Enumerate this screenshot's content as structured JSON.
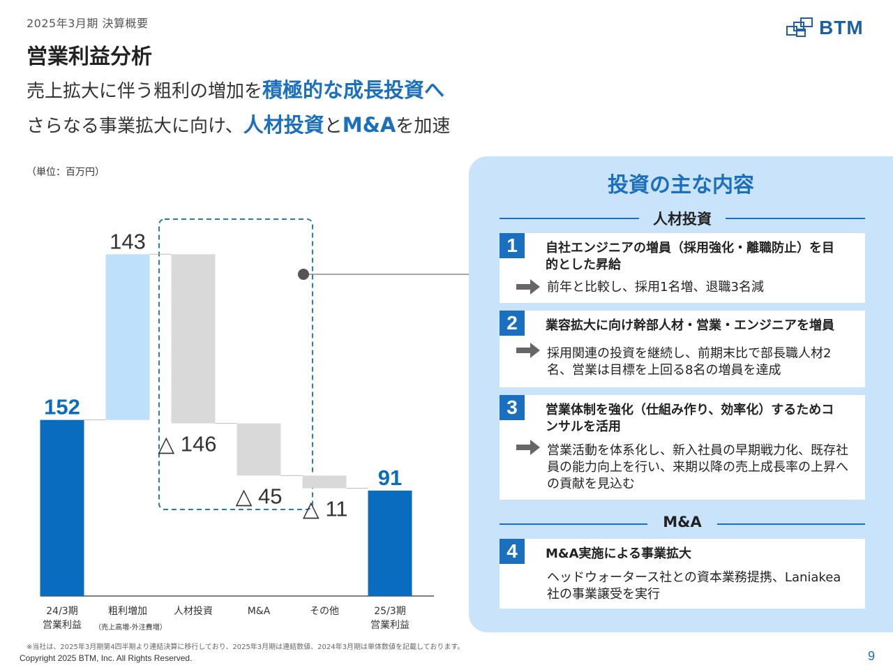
{
  "header": {
    "period": "2025年3月期  決算概要",
    "title": "営業利益分析",
    "sub1_pre": "売上拡大に伴う粗利の増加を",
    "sub1_hl": "積極的な成長投資へ",
    "sub2_pre": "さらなる事業拡大に向け、",
    "sub2_hl1": "人材投資",
    "sub2_mid": "と",
    "sub2_hl2": "M&A",
    "sub2_post": "を加速"
  },
  "logo": {
    "text": "BTM"
  },
  "colors": {
    "accent": "#1a6fbf",
    "bar_dark": "#0a6cbf",
    "bar_light": "#bfe0fb",
    "bar_grey": "#d9d9d9",
    "panel_bg": "#c9e4fa"
  },
  "chart_data": {
    "type": "bar",
    "subtype": "waterfall",
    "unit": "（単位：百万円）",
    "categories": [
      "24/3期\n営業利益",
      "粗利増加",
      "人材投資",
      "M&A",
      "その他",
      "25/3期\n営業利益"
    ],
    "category_notes": [
      "",
      "（売上高増-外注費増）",
      "",
      "",
      "",
      ""
    ],
    "values": [
      152,
      143,
      -146,
      -45,
      -11,
      91
    ],
    "kinds": [
      "total",
      "increase",
      "decrease",
      "decrease",
      "decrease",
      "total"
    ],
    "data_labels": [
      "152",
      "143",
      "△ 146",
      "△ 45",
      "△ 11",
      "91"
    ],
    "ylim": [
      0,
      300
    ],
    "highlight_group": [
      "人材投資",
      "M&A"
    ]
  },
  "panel": {
    "title": "投資の主な内容",
    "section1": "人材投資",
    "section2": "M&A",
    "items": [
      {
        "num": "1",
        "head": "自社エンジニアの増員（採用強化・離職防止）を目的とした昇給",
        "body": "前年と比較し、採用1名増、退職3名減"
      },
      {
        "num": "2",
        "head": "業容拡大に向け幹部人材・営業・エンジニアを増員",
        "body": "採用関連の投資を継続し、前期末比で部長職人材2名、営業は目標を上回る8名の増員を達成"
      },
      {
        "num": "3",
        "head": "営業体制を強化（仕組み作り、効率化）するためコンサルを活用",
        "body": "営業活動を体系化し、新入社員の早期戦力化、既存社員の能力向上を行い、来期以降の売上成長率の上昇への貢献を見込む"
      },
      {
        "num": "4",
        "head": "M&A実施による事業拡大",
        "body": "ヘッドウォータース社との資本業務提携、Laniakea社の事業譲受を実行"
      }
    ]
  },
  "footer": {
    "note": "※当社は、2025年3月期第4四半期より連結決算に移行しており、2025年3月期は連結数値、2024年3月期は単体数値を記載しております。",
    "copyright": "Copyright 2025 BTM, Inc. All Rights Reserved.",
    "page": "9"
  }
}
